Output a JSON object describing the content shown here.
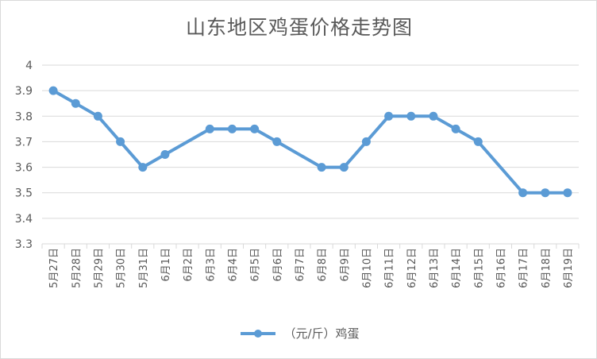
{
  "chart_data": {
    "type": "line",
    "title": "山东地区鸡蛋价格走势图",
    "xlabel": "",
    "ylabel": "",
    "ylim": [
      3.3,
      4
    ],
    "yticks": [
      "3.3",
      "3.4",
      "3.5",
      "3.6",
      "3.7",
      "3.8",
      "3.9",
      "4"
    ],
    "grid": true,
    "legend_position": "bottom",
    "categories": [
      "5月27日",
      "5月28日",
      "5月29日",
      "5月30日",
      "5月31日",
      "6月1日",
      "6月2日",
      "6月3日",
      "6月4日",
      "6月5日",
      "6月6日",
      "6月7日",
      "6月8日",
      "6月9日",
      "6月10日",
      "6月11日",
      "6月12日",
      "6月13日",
      "6月14日",
      "6月15日",
      "6月16日",
      "6月17日",
      "6月18日",
      "6月19日"
    ],
    "series": [
      {
        "name": "（元/斤）鸡蛋",
        "color": "#5b9bd5",
        "values": [
          3.9,
          3.85,
          3.8,
          3.7,
          3.6,
          3.65,
          null,
          3.75,
          3.75,
          3.75,
          3.7,
          null,
          3.6,
          3.6,
          3.7,
          3.8,
          3.8,
          3.8,
          3.75,
          3.7,
          null,
          3.5,
          3.5,
          3.5
        ]
      }
    ]
  }
}
